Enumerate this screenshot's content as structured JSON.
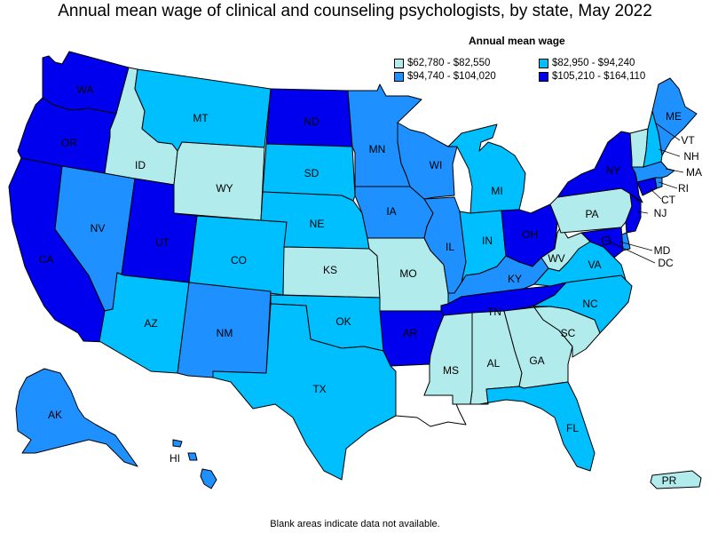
{
  "title": "Annual mean wage of clinical and counseling psychologists, by state, May 2022",
  "legend": {
    "title": "Annual mean wage",
    "items": [
      {
        "label": "$62,780 - $82,550",
        "color": "#b2ebeb"
      },
      {
        "label": "$82,950 - $94,240",
        "color": "#00bfff"
      },
      {
        "label": "$94,740 - $104,020",
        "color": "#1e90ff"
      },
      {
        "label": "$105,210 - $164,110",
        "color": "#0000ee"
      }
    ]
  },
  "footer": "Blank areas indicate data not available.",
  "states": {
    "WA": {
      "label": "WA",
      "tier": 3
    },
    "OR": {
      "label": "OR",
      "tier": 3
    },
    "CA": {
      "label": "CA",
      "tier": 3
    },
    "NV": {
      "label": "NV",
      "tier": 2
    },
    "ID": {
      "label": "ID",
      "tier": 0
    },
    "MT": {
      "label": "MT",
      "tier": 1
    },
    "WY": {
      "label": "WY",
      "tier": 0
    },
    "UT": {
      "label": "UT",
      "tier": 3
    },
    "AZ": {
      "label": "AZ",
      "tier": 1
    },
    "CO": {
      "label": "CO",
      "tier": 1
    },
    "NM": {
      "label": "NM",
      "tier": 2
    },
    "ND": {
      "label": "ND",
      "tier": 3
    },
    "SD": {
      "label": "SD",
      "tier": 1
    },
    "NE": {
      "label": "NE",
      "tier": 1
    },
    "KS": {
      "label": "KS",
      "tier": 0
    },
    "OK": {
      "label": "OK",
      "tier": 1
    },
    "TX": {
      "label": "TX",
      "tier": 1
    },
    "MN": {
      "label": "MN",
      "tier": 2
    },
    "IA": {
      "label": "IA",
      "tier": 2
    },
    "MO": {
      "label": "MO",
      "tier": 0
    },
    "AR": {
      "label": "AR",
      "tier": 3
    },
    "LA": {
      "label": "",
      "tier": null
    },
    "WI": {
      "label": "WI",
      "tier": 2
    },
    "IL": {
      "label": "IL",
      "tier": 2
    },
    "MI": {
      "label": "MI",
      "tier": 1
    },
    "IN": {
      "label": "IN",
      "tier": 1
    },
    "OH": {
      "label": "OH",
      "tier": 3
    },
    "KY": {
      "label": "KY",
      "tier": 2
    },
    "TN": {
      "label": "TN",
      "tier": 3
    },
    "MS": {
      "label": "MS",
      "tier": 0
    },
    "AL": {
      "label": "AL",
      "tier": 0
    },
    "GA": {
      "label": "GA",
      "tier": 0
    },
    "FL": {
      "label": "FL",
      "tier": 1
    },
    "SC": {
      "label": "SC",
      "tier": 0
    },
    "NC": {
      "label": "NC",
      "tier": 1
    },
    "VA": {
      "label": "VA",
      "tier": 1
    },
    "WV": {
      "label": "WV",
      "tier": 0
    },
    "PA": {
      "label": "PA",
      "tier": 0
    },
    "NY": {
      "label": "NY",
      "tier": 3
    },
    "NJ": {
      "label": "NJ",
      "tier": 3
    },
    "DE": {
      "label": "",
      "tier": 2
    },
    "MD": {
      "label": "MD",
      "tier": 3
    },
    "DC": {
      "label": "DC",
      "tier": 3
    },
    "CT": {
      "label": "CT",
      "tier": 3
    },
    "RI": {
      "label": "RI",
      "tier": 2
    },
    "MA": {
      "label": "MA",
      "tier": 2
    },
    "VT": {
      "label": "VT",
      "tier": 0
    },
    "NH": {
      "label": "NH",
      "tier": 1
    },
    "ME": {
      "label": "ME",
      "tier": 2
    },
    "AK": {
      "label": "AK",
      "tier": 2
    },
    "HI": {
      "label": "HI",
      "tier": 2
    },
    "PR": {
      "label": "PR",
      "tier": 0
    }
  }
}
